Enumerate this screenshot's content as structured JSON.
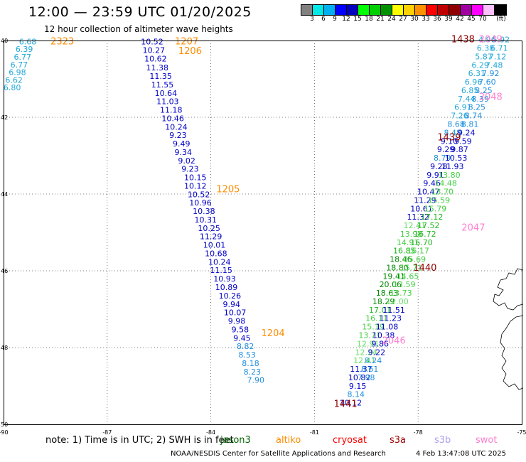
{
  "title": "12:00 — 23:59 UTC 01/20/2025",
  "subtitle": "12 hour collection of altimeter wave heights",
  "legend": {
    "unit": "(ft)",
    "colors": [
      "#808080",
      "#00e8e8",
      "#00b0f0",
      "#0000ff",
      "#0000c0",
      "#00ff00",
      "#00d000",
      "#009000",
      "#ffff00",
      "#ffd000",
      "#ff9000",
      "#ff0000",
      "#c00000",
      "#900000",
      "#a000a0",
      "#ff00ff",
      "#ffc0ff",
      "#000000"
    ],
    "labels": [
      "3",
      "6",
      "9",
      "12",
      "15",
      "18",
      "21",
      "24",
      "27",
      "30",
      "33",
      "36",
      "39",
      "42",
      "45",
      "70"
    ]
  },
  "map": {
    "lon_range": [
      -90,
      -75
    ],
    "lat_range": [
      40,
      50
    ],
    "lon_ticks": [
      "-90",
      "-87",
      "-84",
      "-81",
      "-78",
      "-75"
    ],
    "lat_ticks": [
      "40",
      "42",
      "44",
      "46",
      "48",
      "50"
    ]
  },
  "note": "note:  1) Time is in UTC;  2) SWH is in feet",
  "missions": [
    {
      "name": "jason3",
      "color": "#006400"
    },
    {
      "name": "altiko",
      "color": "#ff8c00"
    },
    {
      "name": "cryosat",
      "color": "#ff0000"
    },
    {
      "name": "s3a",
      "color": "#a00000"
    },
    {
      "name": "s3b",
      "color": "#b0a0f0"
    },
    {
      "name": "swot",
      "color": "#ff80d0"
    }
  ],
  "footer_org": "NOAA/NESDIS Center for Satellite Applications and Research",
  "footer_time": "4 Feb 13:47:08 UTC 2025",
  "time_labels": [
    {
      "text": "2323",
      "lon": -88.3,
      "lat": 40.1,
      "color": "#ff8c00"
    },
    {
      "text": "1207",
      "lon": -84.7,
      "lat": 40.1,
      "color": "#ff8c00"
    },
    {
      "text": "1206",
      "lon": -84.6,
      "lat": 40.35,
      "color": "#ff8c00"
    },
    {
      "text": "1205",
      "lon": -83.5,
      "lat": 43.95,
      "color": "#ff8c00"
    },
    {
      "text": "1204",
      "lon": -82.2,
      "lat": 47.7,
      "color": "#ff8c00"
    },
    {
      "text": "1438",
      "lon": -76.7,
      "lat": 40.05,
      "color": "#900000"
    },
    {
      "text": "2049",
      "lon": -75.9,
      "lat": 40.05,
      "color": "#ff80d0"
    },
    {
      "text": "2048",
      "lon": -75.9,
      "lat": 41.55,
      "color": "#ff80d0"
    },
    {
      "text": "1439",
      "lon": -77.1,
      "lat": 42.6,
      "color": "#900000"
    },
    {
      "text": "2047",
      "lon": -76.4,
      "lat": 44.95,
      "color": "#ff80d0"
    },
    {
      "text": "1440",
      "lon": -77.8,
      "lat": 46.0,
      "color": "#900000"
    },
    {
      "text": "2046",
      "lon": -78.7,
      "lat": 47.9,
      "color": "#ff80d0"
    },
    {
      "text": "1441",
      "lon": -80.1,
      "lat": 49.55,
      "color": "#900000"
    }
  ],
  "tracks": [
    {
      "name": "track-west",
      "points": [
        {
          "v": "6.68",
          "lon": -89.3,
          "lat": 40.1
        },
        {
          "v": "6.39",
          "lon": -89.4,
          "lat": 40.3
        },
        {
          "v": "6.77",
          "lon": -89.45,
          "lat": 40.5
        },
        {
          "v": "6.77",
          "lon": -89.55,
          "lat": 40.7
        },
        {
          "v": "6.98",
          "lon": -89.6,
          "lat": 40.9
        },
        {
          "v": "6.62",
          "lon": -89.7,
          "lat": 41.1
        },
        {
          "v": "6.80",
          "lon": -89.75,
          "lat": 41.3
        }
      ]
    },
    {
      "name": "track-central",
      "points": [
        {
          "v": "10.52",
          "lon": -85.7,
          "lat": 40.1
        },
        {
          "v": "10.27",
          "lon": -85.65,
          "lat": 40.32
        },
        {
          "v": "10.62",
          "lon": -85.6,
          "lat": 40.55
        },
        {
          "v": "11.38",
          "lon": -85.55,
          "lat": 40.78
        },
        {
          "v": "11.35",
          "lon": -85.45,
          "lat": 41.0
        },
        {
          "v": "11.55",
          "lon": -85.4,
          "lat": 41.22
        },
        {
          "v": "10.64",
          "lon": -85.3,
          "lat": 41.44
        },
        {
          "v": "11.03",
          "lon": -85.25,
          "lat": 41.66
        },
        {
          "v": "11.18",
          "lon": -85.15,
          "lat": 41.88
        },
        {
          "v": "10.46",
          "lon": -85.1,
          "lat": 42.1
        },
        {
          "v": "10.24",
          "lon": -85.0,
          "lat": 42.32
        },
        {
          "v": "9.23",
          "lon": -84.95,
          "lat": 42.54
        },
        {
          "v": "9.49",
          "lon": -84.85,
          "lat": 42.76
        },
        {
          "v": "9.34",
          "lon": -84.8,
          "lat": 42.98
        },
        {
          "v": "9.02",
          "lon": -84.7,
          "lat": 43.2
        },
        {
          "v": "9.23",
          "lon": -84.6,
          "lat": 43.42
        },
        {
          "v": "10.15",
          "lon": -84.45,
          "lat": 43.64
        },
        {
          "v": "10.12",
          "lon": -84.45,
          "lat": 43.86
        },
        {
          "v": "10.52",
          "lon": -84.35,
          "lat": 44.08
        },
        {
          "v": "10.96",
          "lon": -84.3,
          "lat": 44.3
        },
        {
          "v": "10.38",
          "lon": -84.2,
          "lat": 44.52
        },
        {
          "v": "10.31",
          "lon": -84.15,
          "lat": 44.74
        },
        {
          "v": "10.25",
          "lon": -84.05,
          "lat": 44.96
        },
        {
          "v": "11.29",
          "lon": -84.0,
          "lat": 45.18
        },
        {
          "v": "10.01",
          "lon": -83.9,
          "lat": 45.4
        },
        {
          "v": "10.68",
          "lon": -83.85,
          "lat": 45.62
        },
        {
          "v": "10.24",
          "lon": -83.75,
          "lat": 45.84
        },
        {
          "v": "11.15",
          "lon": -83.7,
          "lat": 46.06
        },
        {
          "v": "10.93",
          "lon": -83.6,
          "lat": 46.28
        },
        {
          "v": "10.89",
          "lon": -83.55,
          "lat": 46.5
        },
        {
          "v": "10.26",
          "lon": -83.45,
          "lat": 46.72
        },
        {
          "v": "9.94",
          "lon": -83.4,
          "lat": 46.94
        },
        {
          "v": "10.07",
          "lon": -83.3,
          "lat": 47.16
        },
        {
          "v": "9.98",
          "lon": -83.25,
          "lat": 47.38
        },
        {
          "v": "9.58",
          "lon": -83.15,
          "lat": 47.6
        },
        {
          "v": "9.45",
          "lon": -83.1,
          "lat": 47.82
        },
        {
          "v": "8.82",
          "lon": -83.0,
          "lat": 48.04
        },
        {
          "v": "8.53",
          "lon": -82.95,
          "lat": 48.26
        },
        {
          "v": "8.18",
          "lon": -82.85,
          "lat": 48.48
        },
        {
          "v": "8.23",
          "lon": -82.8,
          "lat": 48.7
        },
        {
          "v": "7.90",
          "lon": -82.7,
          "lat": 48.92
        }
      ]
    },
    {
      "name": "track-east-a",
      "points": [
        {
          "v": "4.96",
          "lon": -76.0,
          "lat": 40.05
        },
        {
          "v": "6.38",
          "lon": -76.05,
          "lat": 40.27
        },
        {
          "v": "5.87",
          "lon": -76.1,
          "lat": 40.49
        },
        {
          "v": "6.29",
          "lon": -76.2,
          "lat": 40.71
        },
        {
          "v": "6.31",
          "lon": -76.3,
          "lat": 40.93
        },
        {
          "v": "6.96",
          "lon": -76.4,
          "lat": 41.15
        },
        {
          "v": "6.85",
          "lon": -76.5,
          "lat": 41.37
        },
        {
          "v": "7.44",
          "lon": -76.6,
          "lat": 41.59
        },
        {
          "v": "6.91",
          "lon": -76.7,
          "lat": 41.81
        },
        {
          "v": "7.26",
          "lon": -76.8,
          "lat": 42.03
        },
        {
          "v": "8.68",
          "lon": -76.9,
          "lat": 42.25
        },
        {
          "v": "8.48",
          "lon": -77.0,
          "lat": 42.47
        },
        {
          "v": "9.10",
          "lon": -77.1,
          "lat": 42.69
        },
        {
          "v": "9.29",
          "lon": -77.2,
          "lat": 42.91
        },
        {
          "v": "8.79",
          "lon": -77.3,
          "lat": 43.13
        },
        {
          "v": "9.28",
          "lon": -77.4,
          "lat": 43.35
        },
        {
          "v": "9.91",
          "lon": -77.5,
          "lat": 43.57
        },
        {
          "v": "9.46",
          "lon": -77.6,
          "lat": 43.79
        },
        {
          "v": "10.47",
          "lon": -77.7,
          "lat": 44.01
        },
        {
          "v": "11.29",
          "lon": -77.8,
          "lat": 44.23
        },
        {
          "v": "10.61",
          "lon": -77.9,
          "lat": 44.45
        },
        {
          "v": "11.32",
          "lon": -78.0,
          "lat": 44.67
        },
        {
          "v": "12.41",
          "lon": -78.1,
          "lat": 44.89
        },
        {
          "v": "13.98",
          "lon": -78.2,
          "lat": 45.11
        },
        {
          "v": "14.91",
          "lon": -78.3,
          "lat": 45.33
        },
        {
          "v": "16.85",
          "lon": -78.4,
          "lat": 45.55
        },
        {
          "v": "18.46",
          "lon": -78.5,
          "lat": 45.77
        },
        {
          "v": "18.80",
          "lon": -78.6,
          "lat": 45.99
        },
        {
          "v": "19.41",
          "lon": -78.7,
          "lat": 46.21
        },
        {
          "v": "20.06",
          "lon": -78.8,
          "lat": 46.43
        },
        {
          "v": "18.63",
          "lon": -78.9,
          "lat": 46.65
        },
        {
          "v": "18.29",
          "lon": -79.0,
          "lat": 46.87
        },
        {
          "v": "17.01",
          "lon": -79.1,
          "lat": 47.09
        },
        {
          "v": "16.11",
          "lon": -79.2,
          "lat": 47.31
        },
        {
          "v": "15.19",
          "lon": -79.3,
          "lat": 47.53
        },
        {
          "v": "13.71",
          "lon": -79.4,
          "lat": 47.75
        },
        {
          "v": "12.91",
          "lon": -79.45,
          "lat": 47.97
        },
        {
          "v": "12.24",
          "lon": -79.5,
          "lat": 48.19
        },
        {
          "v": "12.41",
          "lon": -79.55,
          "lat": 48.41
        },
        {
          "v": "11.37",
          "lon": -79.65,
          "lat": 48.63
        },
        {
          "v": "10.82",
          "lon": -79.7,
          "lat": 48.85
        },
        {
          "v": "9.15",
          "lon": -79.75,
          "lat": 49.07
        },
        {
          "v": "8.14",
          "lon": -79.8,
          "lat": 49.29
        },
        {
          "v": "10.12",
          "lon": -79.95,
          "lat": 49.51
        }
      ]
    },
    {
      "name": "track-east-b",
      "points": [
        {
          "v": "5.92",
          "lon": -75.6,
          "lat": 40.05
        },
        {
          "v": "6.71",
          "lon": -75.65,
          "lat": 40.27
        },
        {
          "v": "7.12",
          "lon": -75.7,
          "lat": 40.49
        },
        {
          "v": "7.48",
          "lon": -75.8,
          "lat": 40.71
        },
        {
          "v": "7.92",
          "lon": -75.9,
          "lat": 40.93
        },
        {
          "v": "7.60",
          "lon": -76.0,
          "lat": 41.15
        },
        {
          "v": "8.25",
          "lon": -76.1,
          "lat": 41.37
        },
        {
          "v": "8.39",
          "lon": -76.2,
          "lat": 41.59
        },
        {
          "v": "8.25",
          "lon": -76.3,
          "lat": 41.81
        },
        {
          "v": "8.74",
          "lon": -76.4,
          "lat": 42.03
        },
        {
          "v": "8.81",
          "lon": -76.5,
          "lat": 42.25
        },
        {
          "v": "9.24",
          "lon": -76.6,
          "lat": 42.47
        },
        {
          "v": "9.59",
          "lon": -76.7,
          "lat": 42.69
        },
        {
          "v": "9.87",
          "lon": -76.8,
          "lat": 42.91
        },
        {
          "v": "10.53",
          "lon": -76.9,
          "lat": 43.13
        },
        {
          "v": "11.93",
          "lon": -77.0,
          "lat": 43.35
        },
        {
          "v": "13.80",
          "lon": -77.1,
          "lat": 43.57
        },
        {
          "v": "14.48",
          "lon": -77.2,
          "lat": 43.79
        },
        {
          "v": "13.70",
          "lon": -77.3,
          "lat": 44.01
        },
        {
          "v": "15.59",
          "lon": -77.4,
          "lat": 44.23
        },
        {
          "v": "15.79",
          "lon": -77.5,
          "lat": 44.45
        },
        {
          "v": "17.12",
          "lon": -77.6,
          "lat": 44.67
        },
        {
          "v": "17.52",
          "lon": -77.7,
          "lat": 44.89
        },
        {
          "v": "16.72",
          "lon": -77.8,
          "lat": 45.11
        },
        {
          "v": "16.70",
          "lon": -77.9,
          "lat": 45.33
        },
        {
          "v": "16.17",
          "lon": -78.0,
          "lat": 45.55
        },
        {
          "v": "15.69",
          "lon": -78.1,
          "lat": 45.77
        },
        {
          "v": "15.71",
          "lon": -78.2,
          "lat": 45.99
        },
        {
          "v": "14.65",
          "lon": -78.3,
          "lat": 46.21
        },
        {
          "v": "13.59",
          "lon": -78.4,
          "lat": 46.43
        },
        {
          "v": "13.73",
          "lon": -78.5,
          "lat": 46.65
        },
        {
          "v": "12.00",
          "lon": -78.6,
          "lat": 46.87
        },
        {
          "v": "11.51",
          "lon": -78.7,
          "lat": 47.09
        },
        {
          "v": "11.23",
          "lon": -78.8,
          "lat": 47.31
        },
        {
          "v": "11.08",
          "lon": -78.9,
          "lat": 47.53
        },
        {
          "v": "10.38",
          "lon": -79.0,
          "lat": 47.75
        },
        {
          "v": "9.86",
          "lon": -79.1,
          "lat": 47.97
        },
        {
          "v": "9.22",
          "lon": -79.2,
          "lat": 48.19
        },
        {
          "v": "8.24",
          "lon": -79.3,
          "lat": 48.41
        },
        {
          "v": "8.61",
          "lon": -79.4,
          "lat": 48.63
        },
        {
          "v": "7.98",
          "lon": -79.5,
          "lat": 48.85
        }
      ]
    }
  ]
}
